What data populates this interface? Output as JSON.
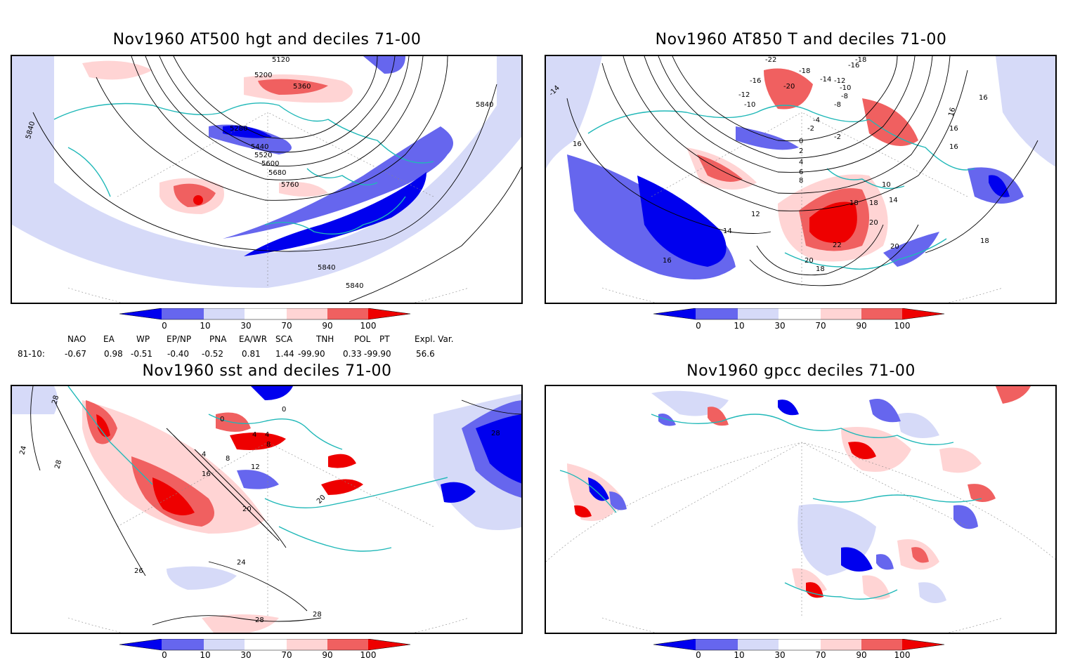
{
  "panels": {
    "p1": {
      "title": "Nov1960 AT500 hgt and deciles 71-00",
      "contour_labels": [
        "5120",
        "5200",
        "5360",
        "5280",
        "5440",
        "5520",
        "5600",
        "5680",
        "5760",
        "5840",
        "5840",
        "5840",
        "5840"
      ]
    },
    "p2": {
      "title": "Nov1960 AT850 T and deciles 71-00",
      "contour_labels": [
        "-22",
        "-18",
        "-16",
        "-16",
        "-18",
        "-14",
        "-12",
        "-20",
        "-10",
        "-12",
        "-10",
        "-8",
        "-8",
        "-4",
        "-2",
        "-2",
        "0",
        "2",
        "4",
        "6",
        "8",
        "10",
        "12",
        "14",
        "14",
        "16",
        "16",
        "16",
        "16",
        "16",
        "18",
        "18",
        "20",
        "20",
        "22",
        "18",
        "20",
        "16",
        "-14",
        "18"
      ]
    },
    "p3": {
      "title": "Nov1960 sst and deciles 71-00",
      "contour_labels": [
        "28",
        "24",
        "28",
        "0",
        "0",
        "4",
        "4",
        "8",
        "4",
        "8",
        "12",
        "16",
        "20",
        "24",
        "26",
        "28",
        "28",
        "28",
        "20"
      ]
    },
    "p4": {
      "title": "Nov1960 gpcc deciles 71-00"
    }
  },
  "colorbar": {
    "labels": [
      "0",
      "10",
      "30",
      "70",
      "90",
      "100"
    ],
    "colors": [
      "#0000ee",
      "#6666ee",
      "#d6daf8",
      "#ffffff",
      "#ffd4d4",
      "#f06060",
      "#ee0000"
    ]
  },
  "indices": {
    "headers": [
      "NAO",
      "EA",
      "WP",
      "EP/NP",
      "PNA",
      "EA/WR",
      "SCA",
      "TNH",
      "POL",
      "PT",
      "Expl. Var."
    ],
    "row_label": "81-10:",
    "values": [
      "-0.67",
      "0.98",
      "-0.51",
      "-0.40",
      "-0.52",
      "0.81",
      "1.44",
      "-99.90",
      "0.33",
      "-99.90",
      "56.6"
    ]
  },
  "map_colors": {
    "coast": "#20b8b8",
    "grid": "#888888",
    "contour": "#000000"
  }
}
